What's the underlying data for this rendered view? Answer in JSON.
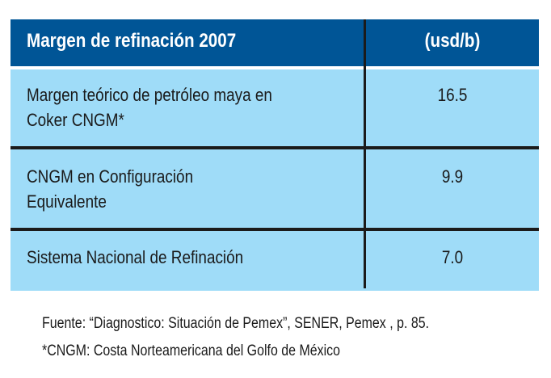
{
  "table": {
    "header": {
      "label": "Margen de refinación 2007",
      "unit": "(usd/b)"
    },
    "rows": [
      {
        "line1": "Margen teórico de petróleo maya en",
        "line2": "Coker CNGM*",
        "value": "16.5"
      },
      {
        "line1": "CNGM en Configuración",
        "line2": "Equivalente",
        "value": "9.9"
      },
      {
        "line1": "Sistema Nacional de Refinación",
        "line2": "",
        "value": "7.0"
      }
    ]
  },
  "notes": {
    "source": "Fuente: “Diagnostico: Situación de Pemex”, SENER, Pemex , p. 85.",
    "footnote": "*CNGM: Costa Norteamericana del Golfo de México"
  },
  "colors": {
    "header": "#005596",
    "row": "#9fdcf8",
    "rule": "#1b1b1b"
  }
}
